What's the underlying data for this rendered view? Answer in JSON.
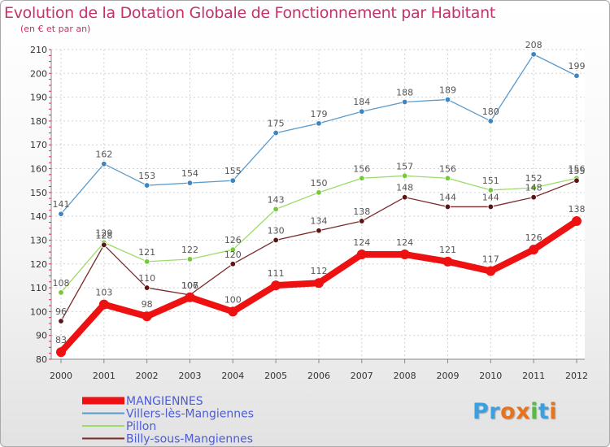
{
  "title": "Evolution de la Dotation Globale de Fonctionnement par Habitant",
  "subtitle": "(en € et par an)",
  "logo": {
    "text": "Proxiti",
    "letter_colors": [
      "#3aa0e0",
      "#3aa0e0",
      "#e8731c",
      "#e8731c",
      "#59b948",
      "#3aa0e0",
      "#e8731c"
    ]
  },
  "chart_data": {
    "type": "line",
    "x": [
      "2000",
      "2001",
      "2002",
      "2003",
      "2004",
      "2005",
      "2006",
      "2007",
      "2008",
      "2009",
      "2010",
      "2011",
      "2012"
    ],
    "ylim": [
      80,
      210
    ],
    "yticks": [
      80,
      90,
      100,
      110,
      120,
      130,
      140,
      150,
      160,
      170,
      180,
      190,
      200,
      210
    ],
    "grid": true,
    "legend_position": "bottom-left",
    "series": [
      {
        "name": "Villers-lès-Mangiennes",
        "color": "#5b9bcc",
        "dot": "#3d86c2",
        "values": [
          141,
          162,
          153,
          154,
          155,
          175,
          179,
          184,
          188,
          189,
          180,
          208,
          199
        ]
      },
      {
        "name": "Pillon",
        "color": "#9ddb68",
        "dot": "#76c93a",
        "values": [
          108,
          129,
          121,
          122,
          126,
          143,
          150,
          156,
          157,
          156,
          151,
          152,
          156
        ]
      },
      {
        "name": "Billy-sous-Mangiennes",
        "color": "#7a2a2a",
        "dot": "#5c1414",
        "values": [
          96,
          128,
          110,
          107,
          120,
          130,
          134,
          138,
          148,
          144,
          144,
          148,
          155
        ]
      },
      {
        "name": "MANGIENNES",
        "color": "#ee1111",
        "dot": "#ee1111",
        "values": [
          83,
          103,
          98,
          106,
          100,
          111,
          112,
          124,
          124,
          121,
          117,
          126,
          138
        ]
      }
    ],
    "legend_order": [
      "MANGIENNES",
      "Villers-lès-Mangiennes",
      "Pillon",
      "Billy-sous-Mangiennes"
    ]
  }
}
